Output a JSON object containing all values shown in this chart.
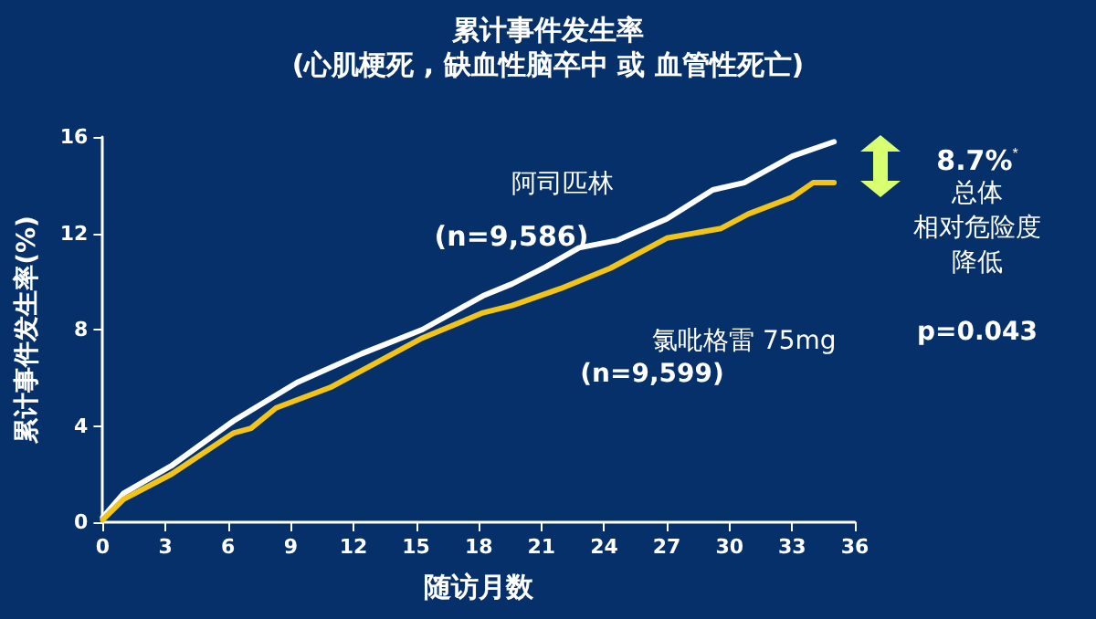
{
  "chart_data": {
    "type": "line",
    "title": "累计事件发生率",
    "subtitle": "(心肌梗死 , 缺血性脑卒中 或 血管性死亡)",
    "xlabel": "随访月数",
    "ylabel": "累计事件发生率(%)",
    "xlim": [
      0,
      36
    ],
    "xticks": [
      0,
      3,
      6,
      9,
      12,
      15,
      18,
      21,
      24,
      27,
      30,
      33,
      36
    ],
    "ylim": [
      0,
      16
    ],
    "yticks": [
      0,
      4,
      8,
      12,
      16
    ],
    "grid": false,
    "legend": false,
    "marker": "none",
    "line_style": "solid",
    "series": [
      {
        "name": "阿司匹林",
        "color": "#ffffff",
        "x": [
          0,
          1,
          3.3,
          6.25,
          9.3,
          12.4,
          15.3,
          18.2,
          19.6,
          21.2,
          22.8,
          24.6,
          27,
          29.2,
          30.7,
          33,
          35
        ],
        "values": [
          0.2,
          1.2,
          2.35,
          4.2,
          5.8,
          7.0,
          8.0,
          9.4,
          9.9,
          10.6,
          11.4,
          11.7,
          12.6,
          13.8,
          14.1,
          15.2,
          15.8
        ]
      },
      {
        "name": "氯吡格雷 75mg",
        "color": "#f2c318",
        "x": [
          0,
          1,
          3.3,
          6.25,
          7.1,
          8.3,
          10.9,
          12.4,
          15.3,
          18.2,
          19.6,
          21.9,
          24.3,
          27,
          29.6,
          30.9,
          33,
          34,
          35
        ],
        "values": [
          0.1,
          0.95,
          2.0,
          3.7,
          3.9,
          4.75,
          5.6,
          6.3,
          7.65,
          8.7,
          9.0,
          9.7,
          10.55,
          11.8,
          12.2,
          12.8,
          13.5,
          14.1,
          14.1
        ]
      }
    ],
    "annotations": [
      "(n=9,586)",
      "(n=9,599)",
      "8.7%$^{*}$",
      "总体",
      "相对危险度",
      "降低",
      "p=0.043"
    ]
  }
}
